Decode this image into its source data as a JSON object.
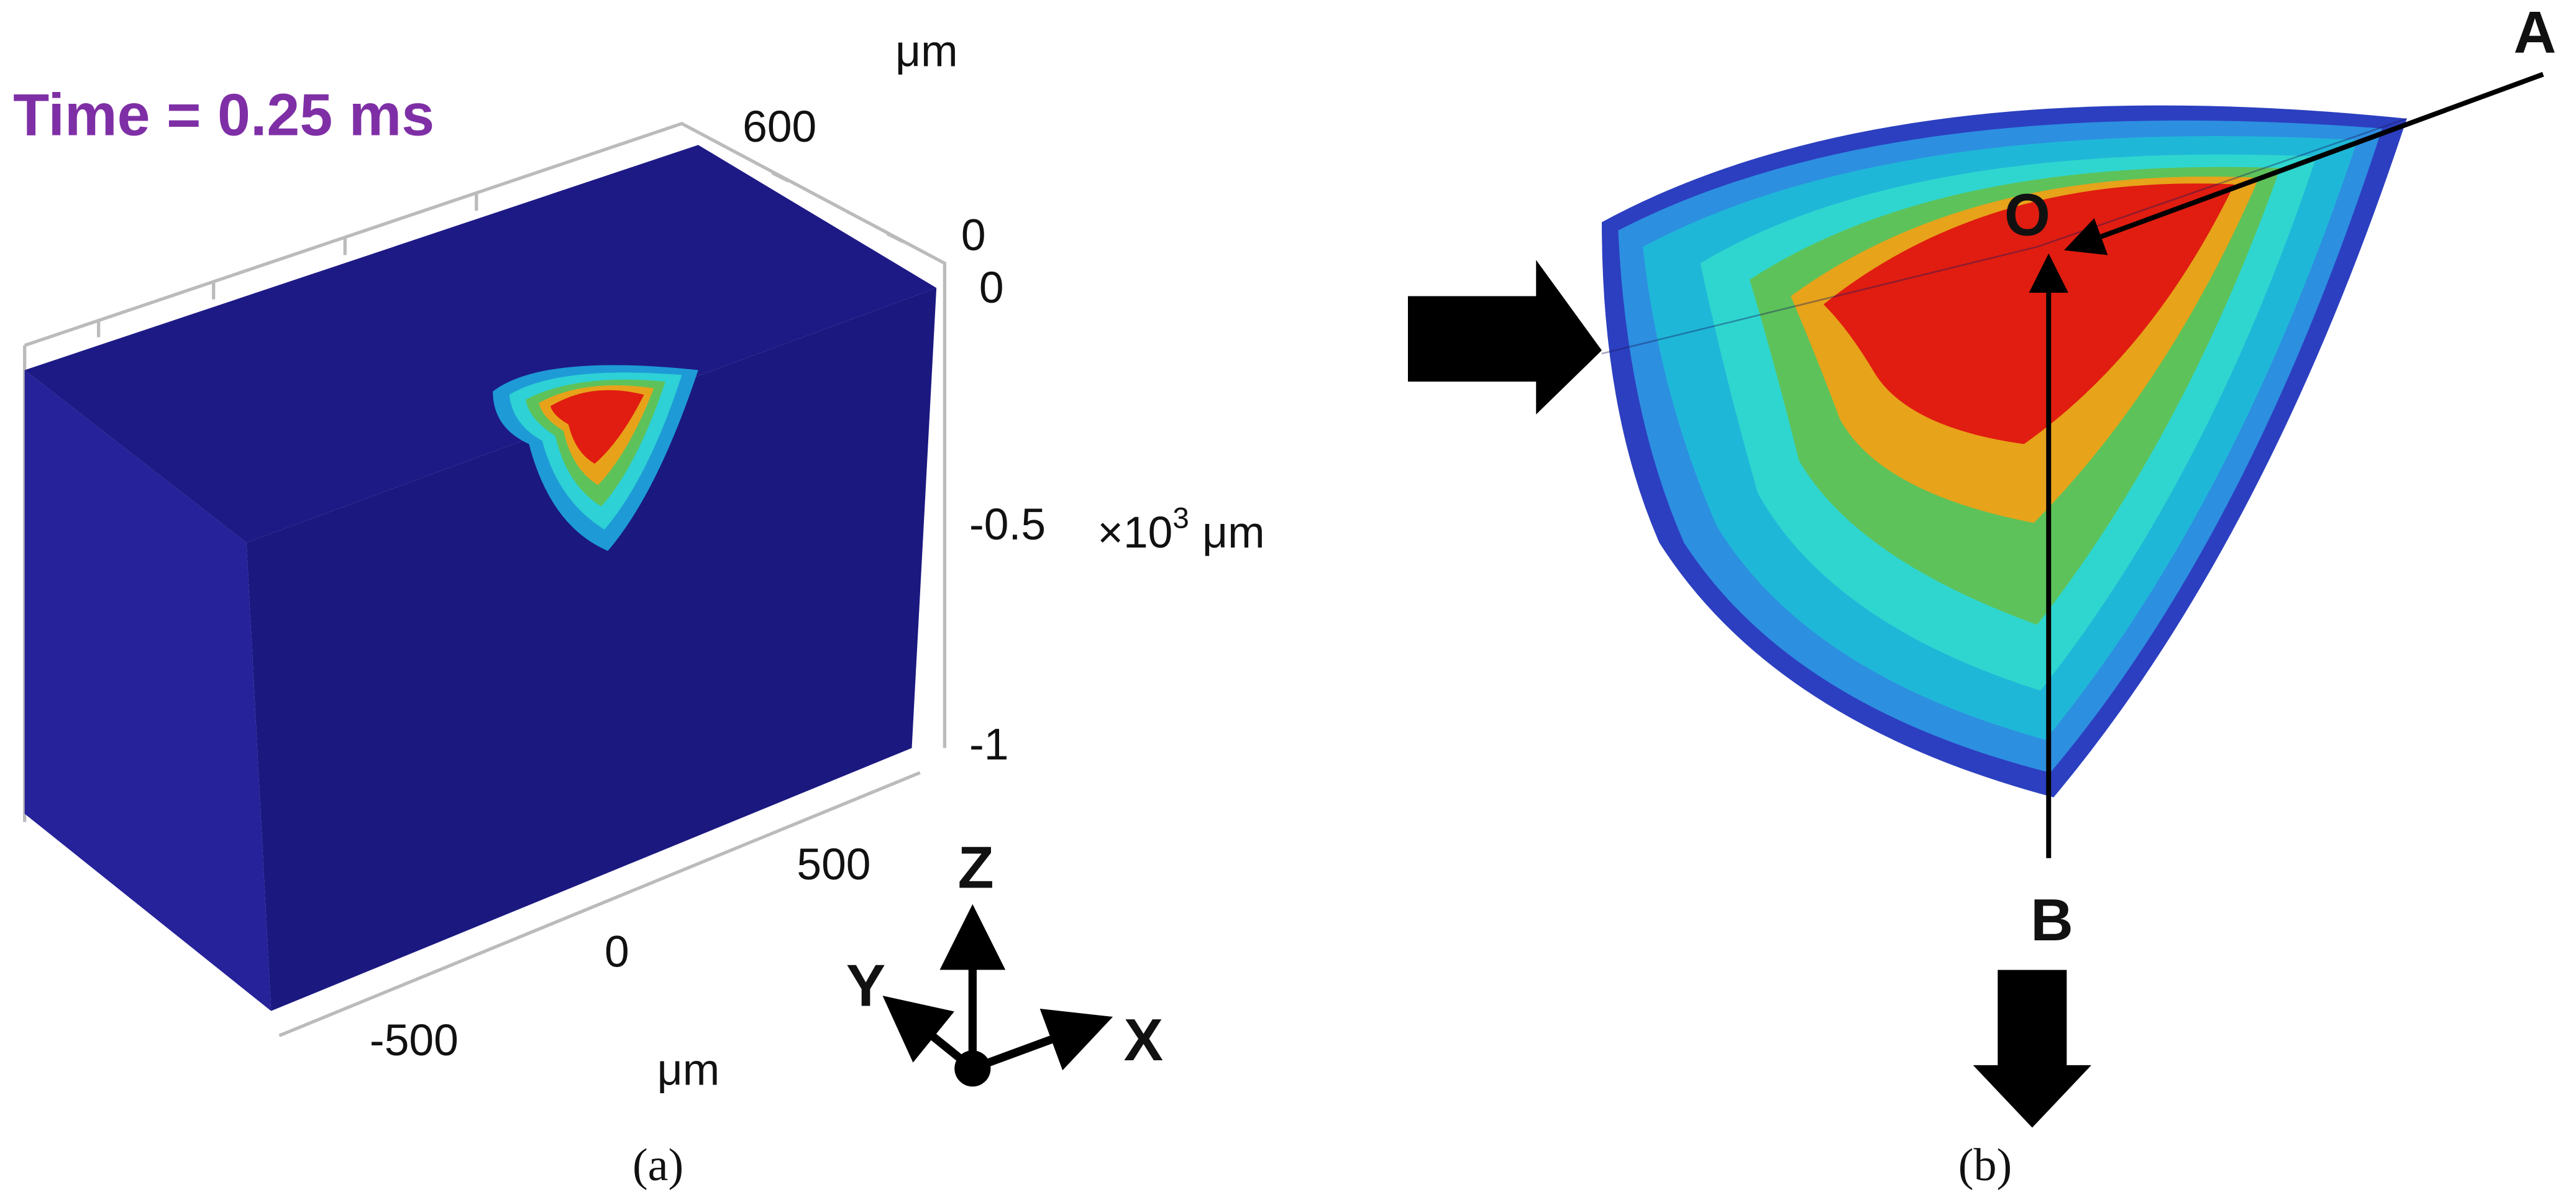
{
  "panel_a": {
    "time_label": "Time = 0.25 ms",
    "y_axis": {
      "unit": "μm",
      "ticks": [
        "600",
        "0"
      ]
    },
    "z_axis": {
      "ticks": [
        "0",
        "-0.5",
        "-1"
      ],
      "multiplier": "×10",
      "exponent": "3",
      "unit": "μm"
    },
    "x_axis": {
      "ticks": [
        "500",
        "0",
        "-500"
      ],
      "unit": "μm"
    },
    "triad": {
      "z": "Z",
      "y": "Y",
      "x": "X"
    },
    "caption": "(a)"
  },
  "panel_b": {
    "points": {
      "a": "A",
      "o": "O",
      "b": "B"
    },
    "caption": "(b)"
  }
}
